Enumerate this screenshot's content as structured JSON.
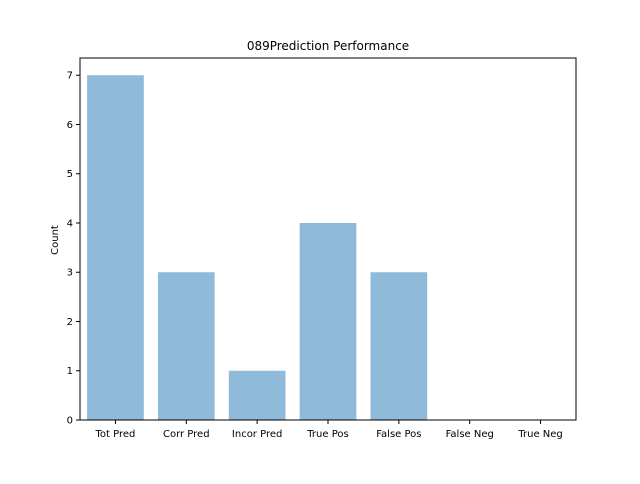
{
  "chart_data": {
    "type": "bar",
    "title": "089Prediction Performance",
    "xlabel": "",
    "ylabel": "Count",
    "categories": [
      "Tot Pred",
      "Corr Pred",
      "Incor Pred",
      "True Pos",
      "False Pos",
      "False Neg",
      "True Neg"
    ],
    "values": [
      7,
      3,
      1,
      4,
      3,
      0,
      0
    ],
    "ylim": [
      0,
      7.35
    ],
    "yticks": [
      0,
      1,
      2,
      3,
      4,
      5,
      6,
      7
    ],
    "grid": false,
    "legend": "none",
    "bar_color": "#8fbad9"
  }
}
